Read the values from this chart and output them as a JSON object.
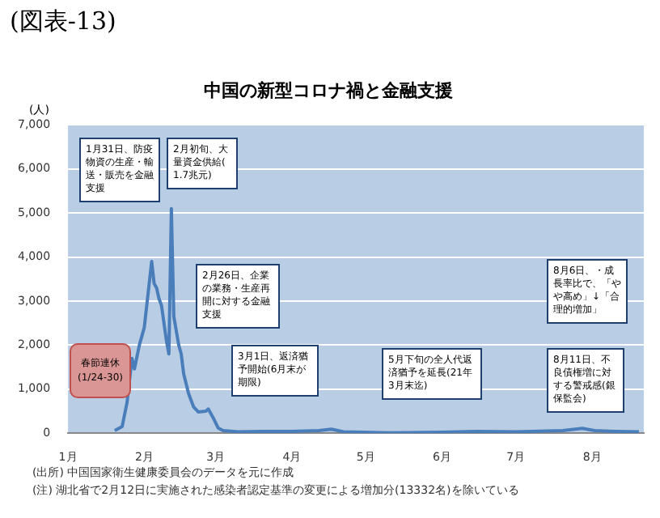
{
  "chart_data": {
    "type": "line",
    "title": "中国の新型コロナ禍と金融支援",
    "ylabel": "(人)",
    "x": [
      "--01-20",
      "--01-23",
      "--01-25",
      "--01-27",
      "--01-28",
      "--01-30",
      "--02-01",
      "--02-04",
      "--02-05",
      "--02-06",
      "--02-07",
      "--02-08",
      "--02-10",
      "--02-11",
      "--02-12",
      "--02-13",
      "--02-15",
      "--02-16",
      "--02-17",
      "--02-19",
      "--02-21",
      "--02-23",
      "--02-26",
      "--02-27",
      "--02-29",
      "--03-02",
      "--03-04",
      "--03-10",
      "--03-20",
      "--04-01",
      "--04-12",
      "--04-17",
      "--04-22",
      "--05-10",
      "--06-01",
      "--06-15",
      "--07-01",
      "--07-20",
      "--07-28",
      "--08-02",
      "--08-10",
      "--08-20"
    ],
    "series": [
      {
        "color": "#4a7ebb",
        "values": [
          60,
          150,
          700,
          1700,
          1460,
          2000,
          2400,
          3900,
          3400,
          3300,
          3050,
          2900,
          2100,
          1800,
          5100,
          2650,
          2000,
          1800,
          1350,
          900,
          600,
          480,
          500,
          550,
          350,
          120,
          60,
          30,
          40,
          40,
          60,
          90,
          30,
          10,
          20,
          40,
          30,
          60,
          110,
          60,
          40,
          30
        ]
      }
    ],
    "xlim": [
      "--01-01",
      "--08-22"
    ],
    "xticks": [
      {
        "value": "--01-01",
        "label": "1月"
      },
      {
        "value": "--02-01",
        "label": "2月"
      },
      {
        "value": "--03-01",
        "label": "3月"
      },
      {
        "value": "--04-01",
        "label": "4月"
      },
      {
        "value": "--05-01",
        "label": "5月"
      },
      {
        "value": "--06-01",
        "label": "6月"
      },
      {
        "value": "--07-01",
        "label": "7月"
      },
      {
        "value": "--08-01",
        "label": "8月"
      }
    ],
    "ylim": [
      0,
      7000
    ],
    "yticks": [
      0,
      {
        "value": 1000,
        "label": "1,000"
      },
      {
        "value": 2000,
        "label": "2,000"
      },
      {
        "value": 3000,
        "label": "3,000"
      },
      {
        "value": 4000,
        "label": "4,000"
      },
      {
        "value": 5000,
        "label": "5,000"
      },
      {
        "value": 6000,
        "label": "6,000"
      },
      {
        "value": 7000,
        "label": "7,000"
      }
    ],
    "grid": "y",
    "legend": false,
    "marker": "none",
    "line_style": "solid",
    "annotations": [
      "(図表-13)",
      "1月31日、防疫物資の生産・輸送・販売を金融支援",
      "2月初旬、大量資金供給(1.7兆元)",
      "2月26日、企業の業務・生産再開に対する金融支援",
      "3月1日、返済猶予開始(6月末が期限)",
      "5月下旬の全人代返済猶予を延長(21年3月末迄)",
      "8月6日、・成長率比で、「やや高め」↓「合理的増加」",
      "8月11日、不良債権増に対する警戒感(銀保監会)",
      "春節連休(1/24-30)",
      "(出所) 中国国家衛生健康委員会のデータを元に作成",
      "(注) 湖北省で2月12日に実施された感染者認定基準の変更による増加分(13332名)を除いている"
    ]
  }
}
